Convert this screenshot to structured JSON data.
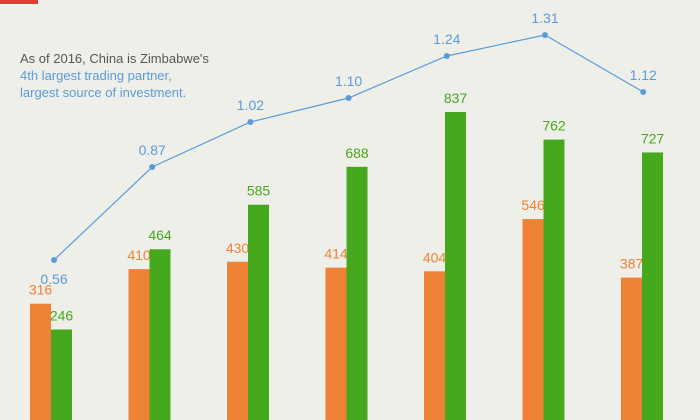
{
  "annotation": {
    "line1": "As of 2016, China is Zimbabwe's",
    "line2": "4th largest trading partner,",
    "line3": "largest source of investment."
  },
  "colors": {
    "background": "#efefea",
    "orange": "#ee8335",
    "green": "#46a81c",
    "blue": "#5a9bd8",
    "note_text": "#555555",
    "red_marker": "#e53935"
  },
  "chart_data": {
    "type": "bar",
    "categories": [
      "",
      "",
      "",
      "",
      "",
      "",
      ""
    ],
    "series": [
      {
        "values": [
          316,
          410,
          430,
          414,
          404,
          546,
          387
        ],
        "color": "#ee8335"
      },
      {
        "values": [
          246,
          464,
          585,
          688,
          837,
          762,
          727
        ],
        "color": "#46a81c"
      }
    ],
    "line": {
      "values": [
        0.56,
        0.87,
        1.02,
        1.1,
        1.24,
        1.31,
        1.12
      ],
      "labels": [
        "0.56",
        "0.87",
        "1.02",
        "1.10",
        "1.24",
        "1.31",
        "1.12"
      ],
      "color": "#5a9bd8"
    },
    "title": "",
    "xlabel": "",
    "ylabel": "",
    "grid": false,
    "legend": "none"
  }
}
